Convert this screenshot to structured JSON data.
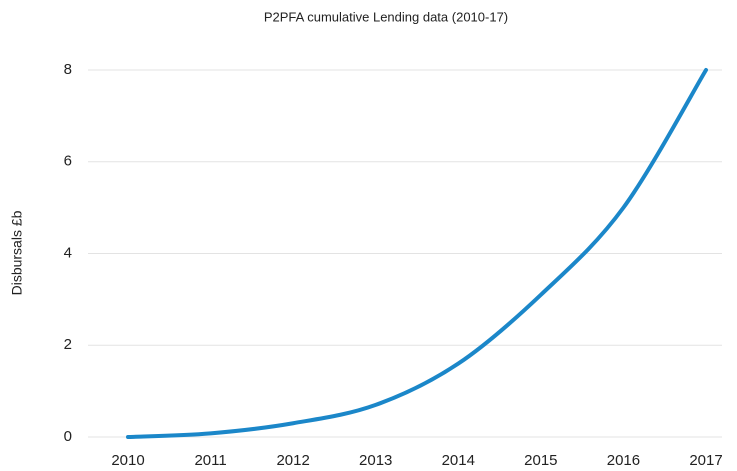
{
  "chart_data": {
    "type": "line",
    "title": "P2PFA cumulative Lending data (2010-17)",
    "y_label": "Disbursals £b",
    "categories": [
      "2010",
      "2011",
      "2012",
      "2013",
      "2014",
      "2015",
      "2016",
      "2017"
    ],
    "series": [
      {
        "name": "Disbursals",
        "color": "#1b87c9",
        "values": [
          0,
          0.08,
          0.3,
          0.7,
          1.6,
          3.1,
          5.0,
          8.0
        ]
      }
    ],
    "ylim": [
      0,
      8
    ],
    "yticks": [
      0,
      2,
      4,
      6,
      8
    ],
    "grid": true,
    "smooth": true
  }
}
